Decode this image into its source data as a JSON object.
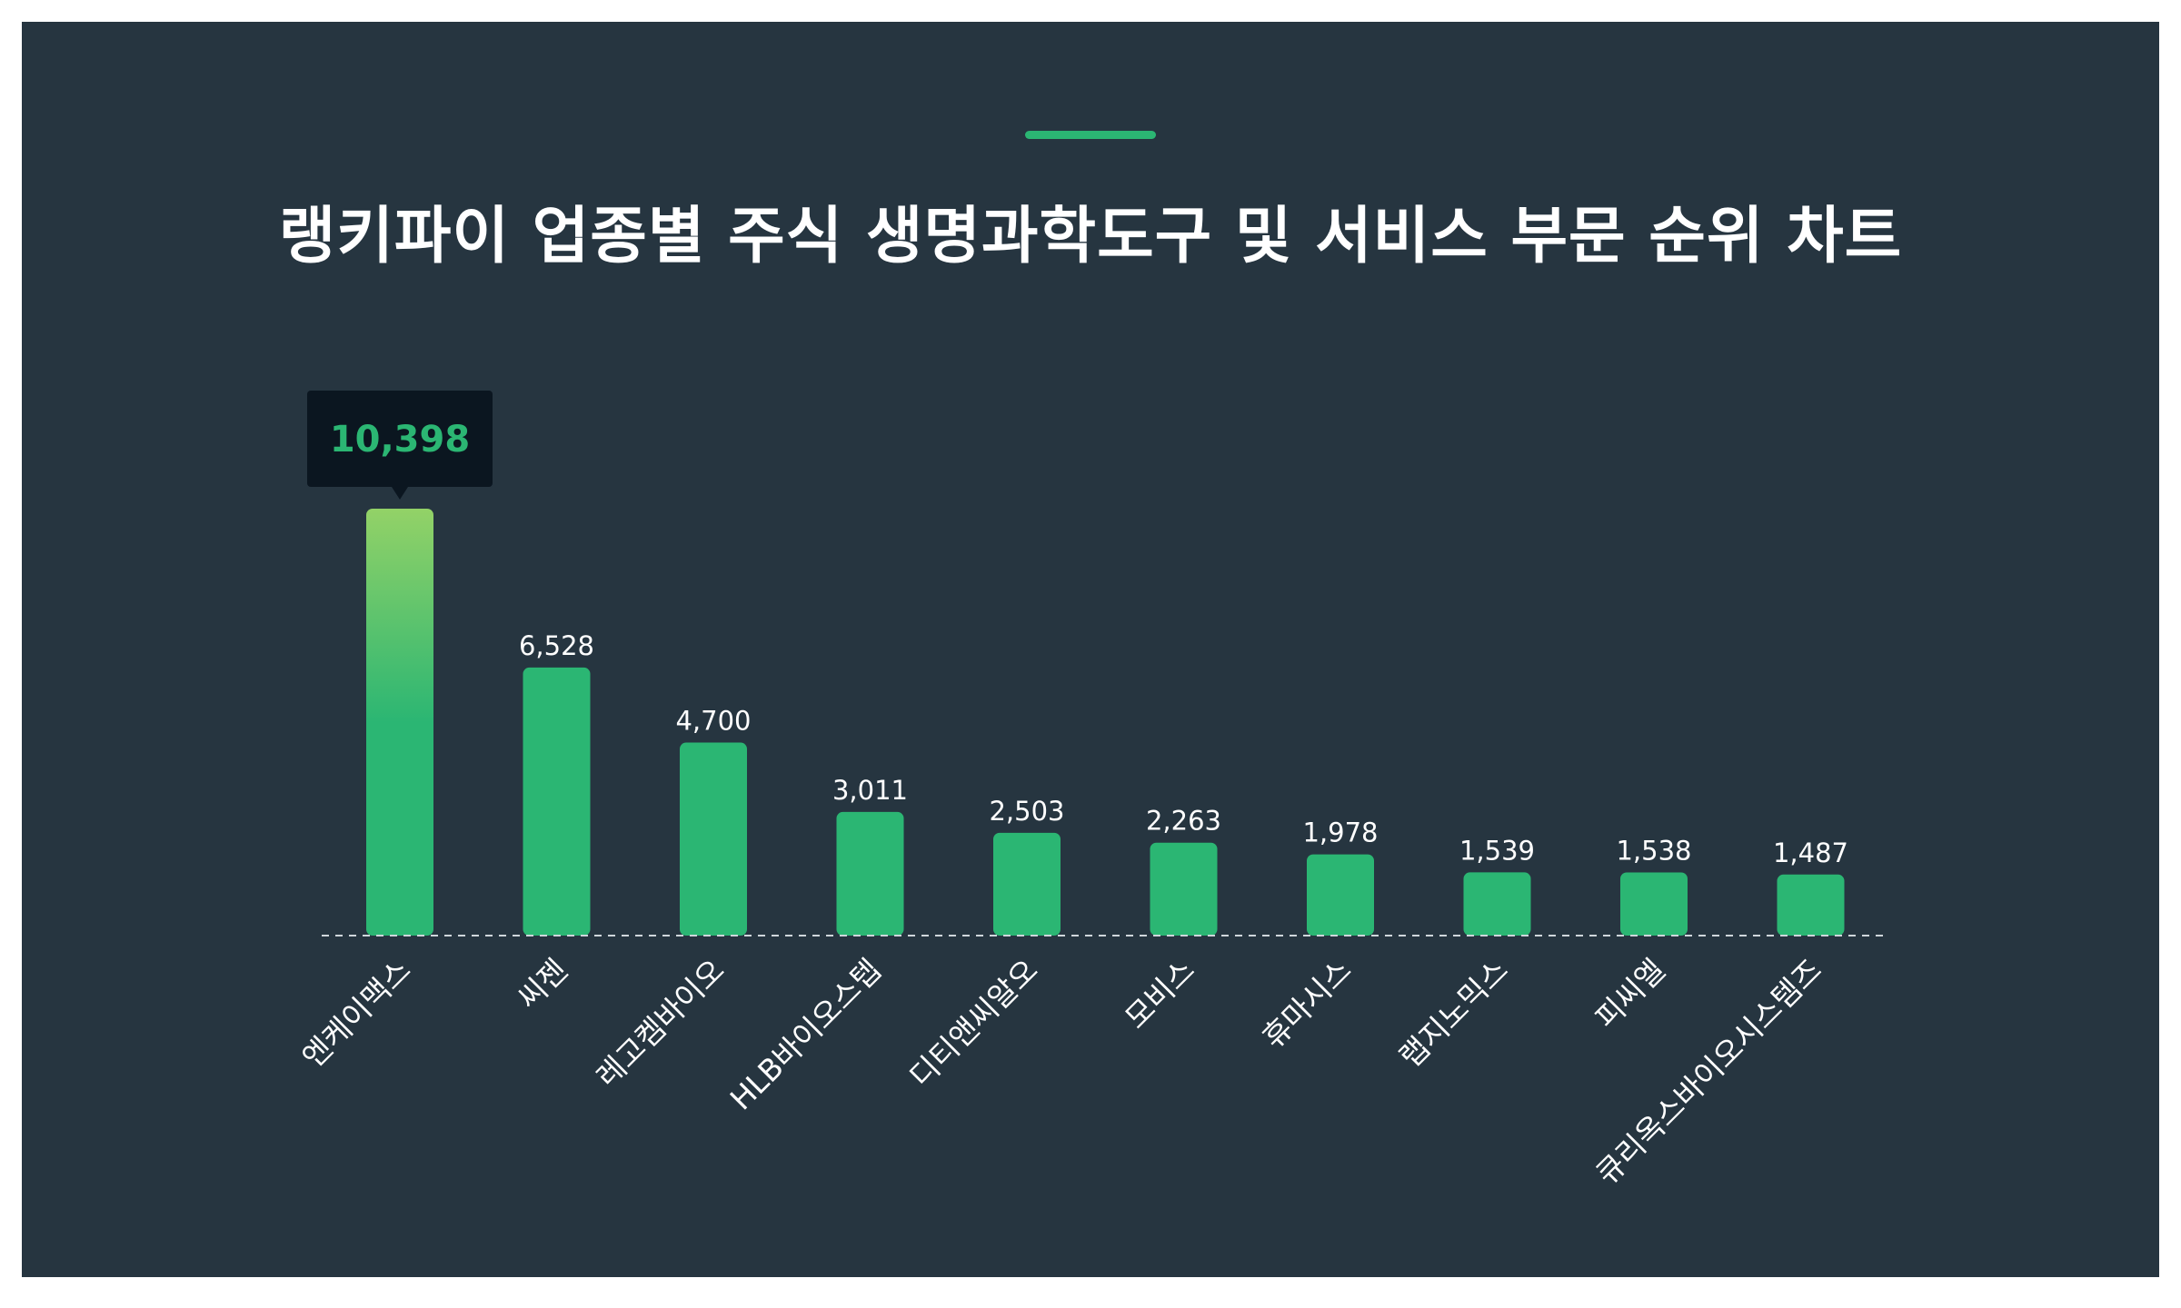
{
  "title": "랭키파이 업종별 주식 생명과학도구 및 서비스 부문 순위 차트",
  "colors": {
    "background": "#263540",
    "bar": "#2bb673",
    "bar_top_highlight": "#93d267",
    "tooltip_bg": "#0b1620",
    "tooltip_text": "#2bb673",
    "text": "#ffffff",
    "baseline": "#cfd6db"
  },
  "chart_data": {
    "type": "bar",
    "title": "랭키파이 업종별 주식 생명과학도구 및 서비스 부문 순위 차트",
    "xlabel": "",
    "ylabel": "",
    "categories": [
      "엔케이맥스",
      "씨젠",
      "레고켐바이오",
      "HLB바이오스텝",
      "디티앤씨알오",
      "모비스",
      "휴마시스",
      "랩지노믹스",
      "피씨엘",
      "큐리옥스바이오시스템즈"
    ],
    "values": [
      10398,
      6528,
      4700,
      3011,
      2503,
      2263,
      1978,
      1539,
      1538,
      1487
    ],
    "value_labels": [
      "10,398",
      "6,528",
      "4,700",
      "3,011",
      "2,503",
      "2,263",
      "1,978",
      "1,539",
      "1,538",
      "1,487"
    ],
    "highlighted_index": 0,
    "ylim": [
      0,
      10398
    ],
    "grid": false,
    "legend": "none"
  }
}
